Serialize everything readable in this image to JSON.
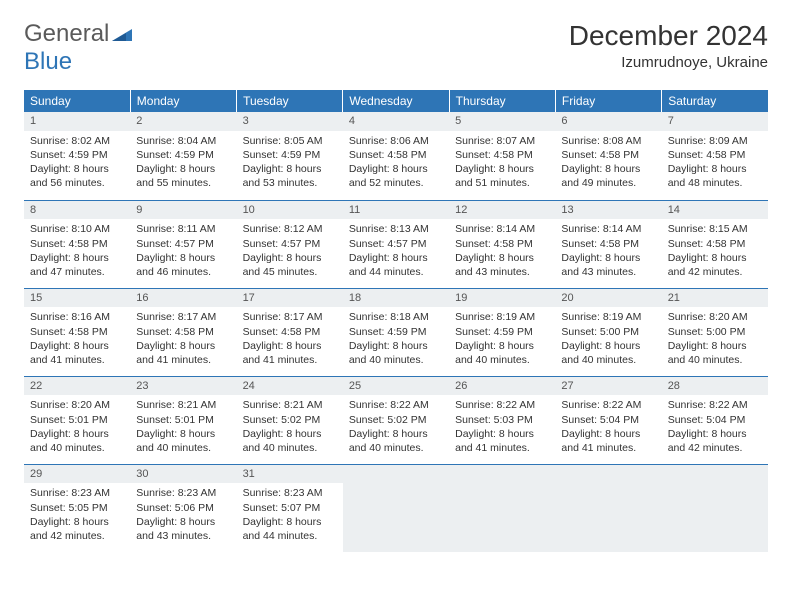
{
  "brand": {
    "word1": "General",
    "word2": "Blue"
  },
  "colors": {
    "header_bg": "#2e75b6",
    "header_text": "#ffffff",
    "daynum_bg": "#eceff1",
    "row_divider": "#2e75b6",
    "body_text": "#333333",
    "logo_gray": "#5a5a5a",
    "logo_blue": "#2e75b6"
  },
  "title": "December 2024",
  "location": "Izumrudnoye, Ukraine",
  "weekdays": [
    "Sunday",
    "Monday",
    "Tuesday",
    "Wednesday",
    "Thursday",
    "Friday",
    "Saturday"
  ],
  "days": [
    {
      "n": "1",
      "sunrise": "Sunrise: 8:02 AM",
      "sunset": "Sunset: 4:59 PM",
      "daylight": "Daylight: 8 hours and 56 minutes."
    },
    {
      "n": "2",
      "sunrise": "Sunrise: 8:04 AM",
      "sunset": "Sunset: 4:59 PM",
      "daylight": "Daylight: 8 hours and 55 minutes."
    },
    {
      "n": "3",
      "sunrise": "Sunrise: 8:05 AM",
      "sunset": "Sunset: 4:59 PM",
      "daylight": "Daylight: 8 hours and 53 minutes."
    },
    {
      "n": "4",
      "sunrise": "Sunrise: 8:06 AM",
      "sunset": "Sunset: 4:58 PM",
      "daylight": "Daylight: 8 hours and 52 minutes."
    },
    {
      "n": "5",
      "sunrise": "Sunrise: 8:07 AM",
      "sunset": "Sunset: 4:58 PM",
      "daylight": "Daylight: 8 hours and 51 minutes."
    },
    {
      "n": "6",
      "sunrise": "Sunrise: 8:08 AM",
      "sunset": "Sunset: 4:58 PM",
      "daylight": "Daylight: 8 hours and 49 minutes."
    },
    {
      "n": "7",
      "sunrise": "Sunrise: 8:09 AM",
      "sunset": "Sunset: 4:58 PM",
      "daylight": "Daylight: 8 hours and 48 minutes."
    },
    {
      "n": "8",
      "sunrise": "Sunrise: 8:10 AM",
      "sunset": "Sunset: 4:58 PM",
      "daylight": "Daylight: 8 hours and 47 minutes."
    },
    {
      "n": "9",
      "sunrise": "Sunrise: 8:11 AM",
      "sunset": "Sunset: 4:57 PM",
      "daylight": "Daylight: 8 hours and 46 minutes."
    },
    {
      "n": "10",
      "sunrise": "Sunrise: 8:12 AM",
      "sunset": "Sunset: 4:57 PM",
      "daylight": "Daylight: 8 hours and 45 minutes."
    },
    {
      "n": "11",
      "sunrise": "Sunrise: 8:13 AM",
      "sunset": "Sunset: 4:57 PM",
      "daylight": "Daylight: 8 hours and 44 minutes."
    },
    {
      "n": "12",
      "sunrise": "Sunrise: 8:14 AM",
      "sunset": "Sunset: 4:58 PM",
      "daylight": "Daylight: 8 hours and 43 minutes."
    },
    {
      "n": "13",
      "sunrise": "Sunrise: 8:14 AM",
      "sunset": "Sunset: 4:58 PM",
      "daylight": "Daylight: 8 hours and 43 minutes."
    },
    {
      "n": "14",
      "sunrise": "Sunrise: 8:15 AM",
      "sunset": "Sunset: 4:58 PM",
      "daylight": "Daylight: 8 hours and 42 minutes."
    },
    {
      "n": "15",
      "sunrise": "Sunrise: 8:16 AM",
      "sunset": "Sunset: 4:58 PM",
      "daylight": "Daylight: 8 hours and 41 minutes."
    },
    {
      "n": "16",
      "sunrise": "Sunrise: 8:17 AM",
      "sunset": "Sunset: 4:58 PM",
      "daylight": "Daylight: 8 hours and 41 minutes."
    },
    {
      "n": "17",
      "sunrise": "Sunrise: 8:17 AM",
      "sunset": "Sunset: 4:58 PM",
      "daylight": "Daylight: 8 hours and 41 minutes."
    },
    {
      "n": "18",
      "sunrise": "Sunrise: 8:18 AM",
      "sunset": "Sunset: 4:59 PM",
      "daylight": "Daylight: 8 hours and 40 minutes."
    },
    {
      "n": "19",
      "sunrise": "Sunrise: 8:19 AM",
      "sunset": "Sunset: 4:59 PM",
      "daylight": "Daylight: 8 hours and 40 minutes."
    },
    {
      "n": "20",
      "sunrise": "Sunrise: 8:19 AM",
      "sunset": "Sunset: 5:00 PM",
      "daylight": "Daylight: 8 hours and 40 minutes."
    },
    {
      "n": "21",
      "sunrise": "Sunrise: 8:20 AM",
      "sunset": "Sunset: 5:00 PM",
      "daylight": "Daylight: 8 hours and 40 minutes."
    },
    {
      "n": "22",
      "sunrise": "Sunrise: 8:20 AM",
      "sunset": "Sunset: 5:01 PM",
      "daylight": "Daylight: 8 hours and 40 minutes."
    },
    {
      "n": "23",
      "sunrise": "Sunrise: 8:21 AM",
      "sunset": "Sunset: 5:01 PM",
      "daylight": "Daylight: 8 hours and 40 minutes."
    },
    {
      "n": "24",
      "sunrise": "Sunrise: 8:21 AM",
      "sunset": "Sunset: 5:02 PM",
      "daylight": "Daylight: 8 hours and 40 minutes."
    },
    {
      "n": "25",
      "sunrise": "Sunrise: 8:22 AM",
      "sunset": "Sunset: 5:02 PM",
      "daylight": "Daylight: 8 hours and 40 minutes."
    },
    {
      "n": "26",
      "sunrise": "Sunrise: 8:22 AM",
      "sunset": "Sunset: 5:03 PM",
      "daylight": "Daylight: 8 hours and 41 minutes."
    },
    {
      "n": "27",
      "sunrise": "Sunrise: 8:22 AM",
      "sunset": "Sunset: 5:04 PM",
      "daylight": "Daylight: 8 hours and 41 minutes."
    },
    {
      "n": "28",
      "sunrise": "Sunrise: 8:22 AM",
      "sunset": "Sunset: 5:04 PM",
      "daylight": "Daylight: 8 hours and 42 minutes."
    },
    {
      "n": "29",
      "sunrise": "Sunrise: 8:23 AM",
      "sunset": "Sunset: 5:05 PM",
      "daylight": "Daylight: 8 hours and 42 minutes."
    },
    {
      "n": "30",
      "sunrise": "Sunrise: 8:23 AM",
      "sunset": "Sunset: 5:06 PM",
      "daylight": "Daylight: 8 hours and 43 minutes."
    },
    {
      "n": "31",
      "sunrise": "Sunrise: 8:23 AM",
      "sunset": "Sunset: 5:07 PM",
      "daylight": "Daylight: 8 hours and 44 minutes."
    }
  ]
}
